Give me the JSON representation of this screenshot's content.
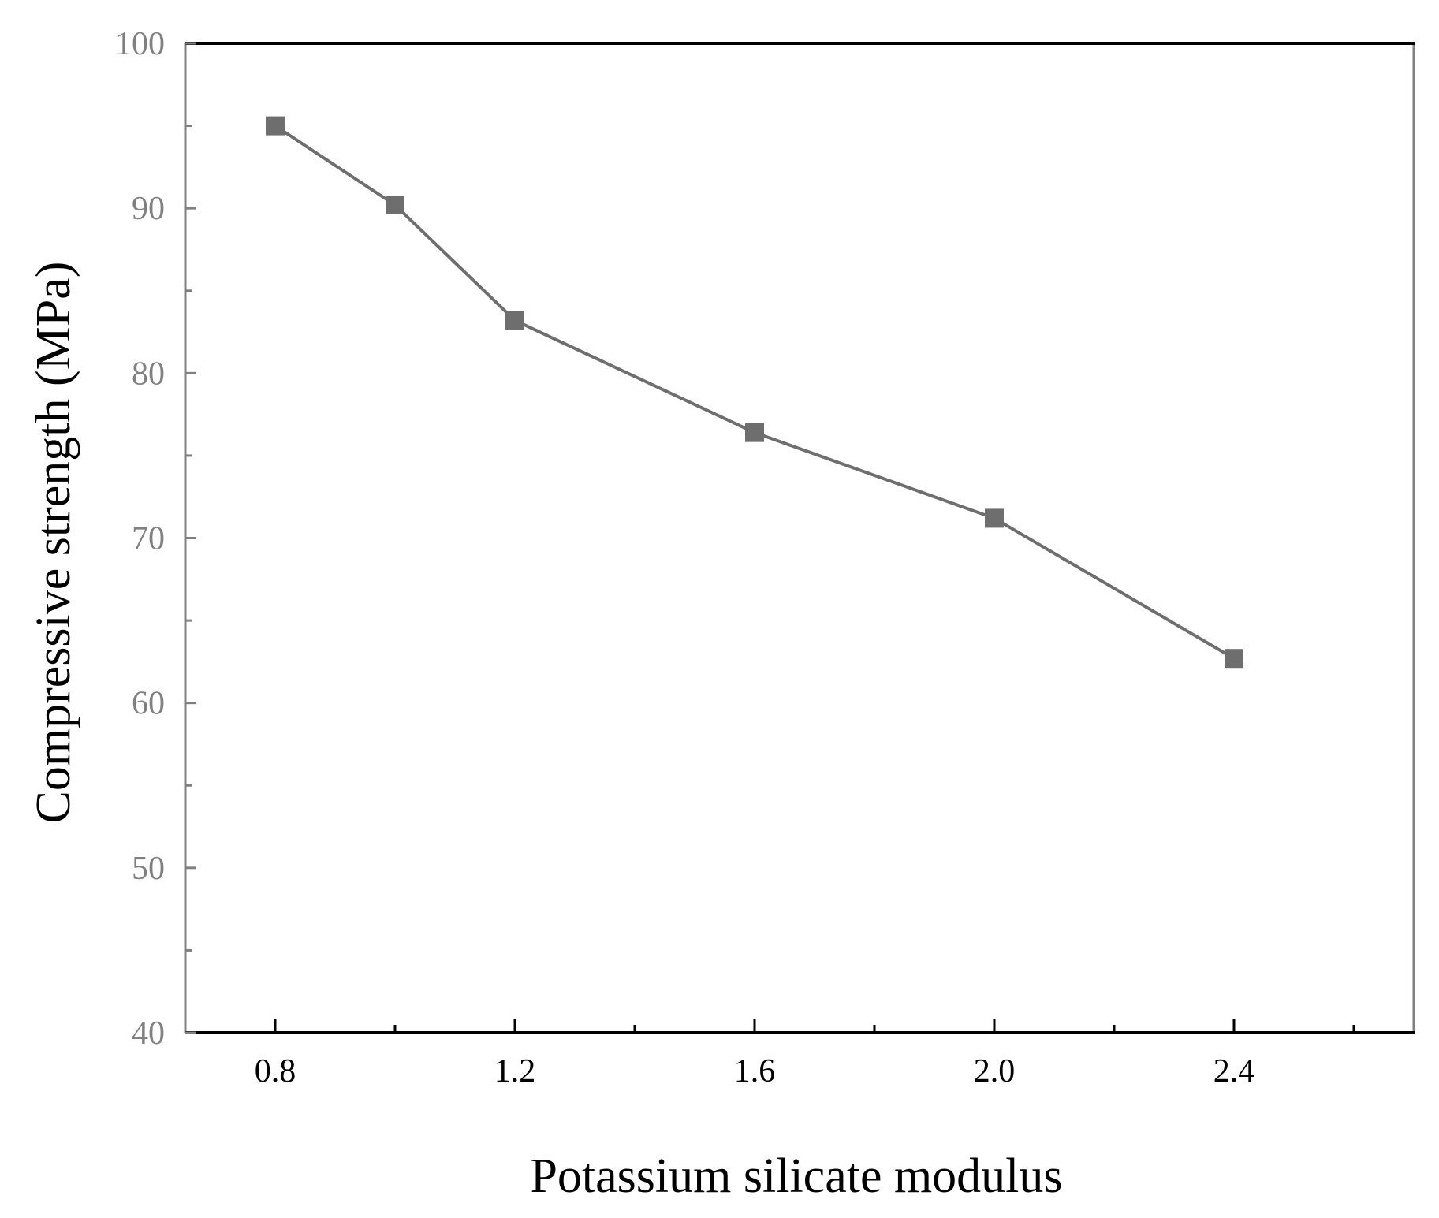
{
  "chart_data": {
    "type": "line",
    "title": "",
    "xlabel": "Potassium silicate modulus",
    "ylabel": "Compressive strength (MPa)",
    "xlim": [
      0.65,
      2.7
    ],
    "ylim": [
      40,
      100
    ],
    "x_ticks": [
      0.8,
      1.2,
      1.6,
      2.0,
      2.4
    ],
    "x_tick_labels": [
      "0.8",
      "1.2",
      "1.6",
      "2.0",
      "2.4"
    ],
    "x_minor_ticks": [
      1.0,
      1.4,
      1.8,
      2.2,
      2.6
    ],
    "y_ticks": [
      40,
      50,
      60,
      70,
      80,
      90,
      100
    ],
    "y_tick_labels": [
      "40",
      "50",
      "60",
      "70",
      "80",
      "90",
      "100"
    ],
    "y_minor_ticks": [
      45,
      55,
      65,
      75,
      85,
      95
    ],
    "grid": false,
    "legend": "none",
    "series": [
      {
        "x": [
          0.8,
          1.0,
          1.2,
          1.6,
          2.0,
          2.4
        ],
        "y": [
          95.0,
          90.2,
          83.2,
          76.4,
          71.2,
          62.7
        ],
        "marker": "square",
        "color": "#6e6e6e"
      }
    ],
    "colors": {
      "series": "#6e6e6e",
      "left_axis": "#808080",
      "right_axis": "#808080",
      "top_axis": "#000000",
      "bottom_axis": "#000000",
      "y_tick_labels": "#808080",
      "x_tick_labels": "#000000"
    }
  }
}
